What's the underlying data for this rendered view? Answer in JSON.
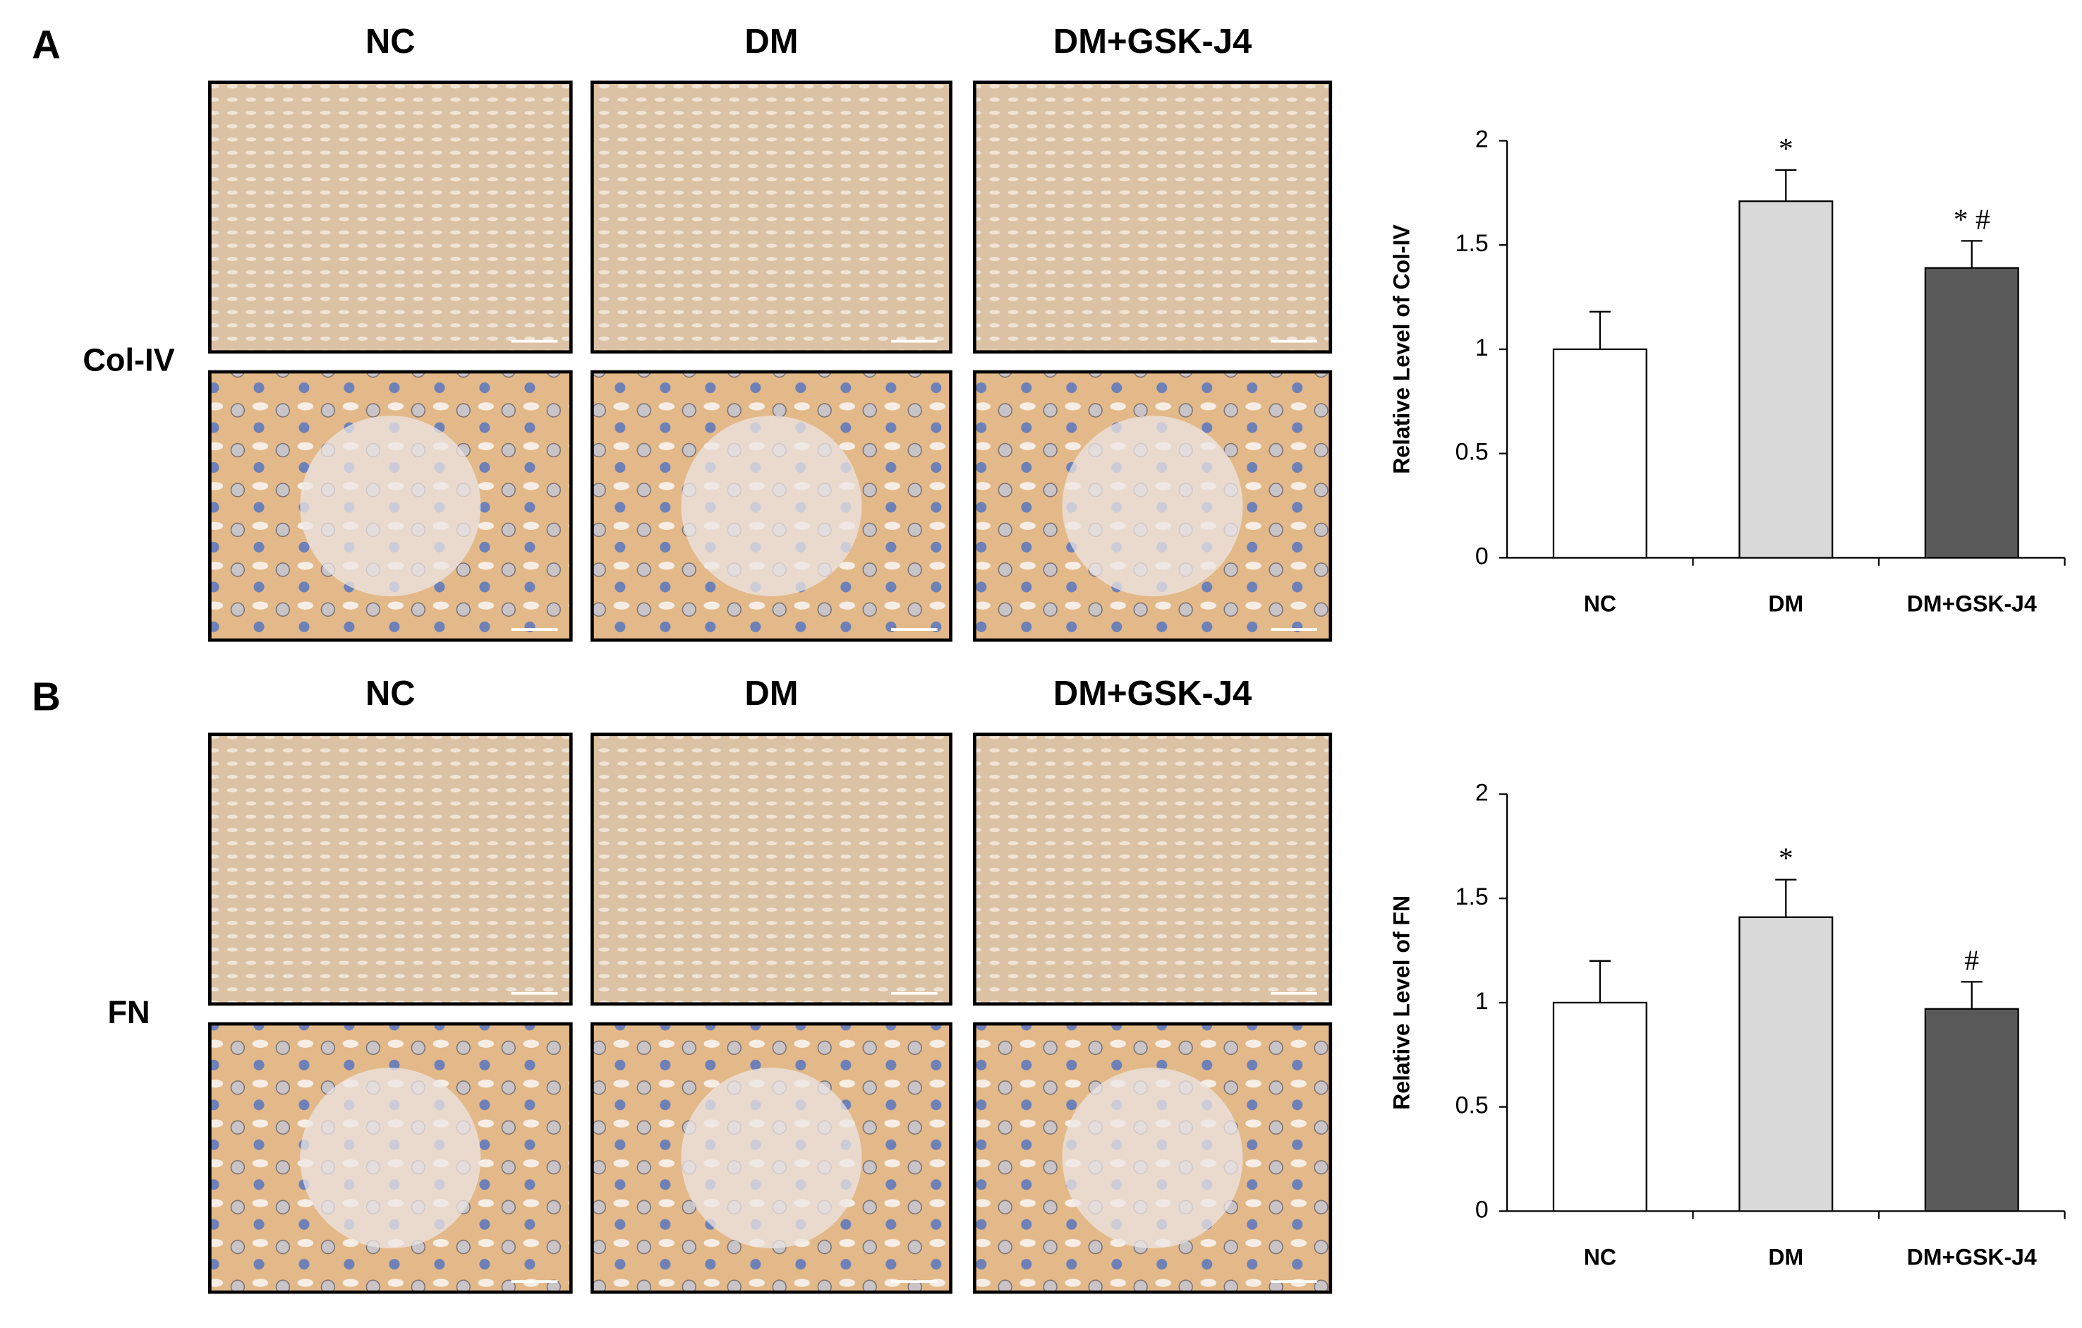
{
  "panels": [
    {
      "label": "A",
      "columns": [
        "NC",
        "DM",
        "DM+GSK-J4"
      ],
      "stain": "Col-IV"
    },
    {
      "label": "B",
      "columns": [
        "NC",
        "DM",
        "DM+GSK-J4"
      ],
      "stain": "FN"
    }
  ],
  "chart_data": [
    {
      "type": "bar",
      "ylabel": "Relative Level of Col-IV",
      "categories": [
        "NC",
        "DM",
        "DM+GSK-J4"
      ],
      "values": [
        1.0,
        1.71,
        1.39
      ],
      "errors": [
        0.18,
        0.15,
        0.13
      ],
      "annotations": [
        null,
        "*",
        "* #"
      ],
      "colors": [
        "#ffffff",
        "#d9d9d9",
        "#595959"
      ],
      "ylim": [
        0,
        2
      ],
      "yticks": [
        0,
        0.5,
        1,
        1.5,
        2
      ]
    },
    {
      "type": "bar",
      "ylabel": "Relative Level of FN",
      "categories": [
        "NC",
        "DM",
        "DM+GSK-J4"
      ],
      "values": [
        1.0,
        1.41,
        0.97
      ],
      "errors": [
        0.2,
        0.18,
        0.13
      ],
      "annotations": [
        null,
        "*",
        "#"
      ],
      "colors": [
        "#ffffff",
        "#d9d9d9",
        "#595959"
      ],
      "ylim": [
        0,
        2
      ],
      "yticks": [
        0,
        0.5,
        1,
        1.5,
        2
      ]
    }
  ]
}
